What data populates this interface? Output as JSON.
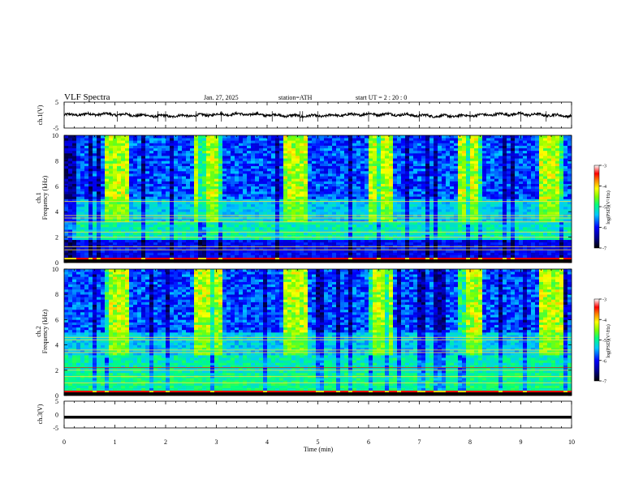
{
  "header": {
    "title": "VLF  Spectra",
    "date": "Jan. 27, 2025",
    "station": "station=ATH",
    "start": "start  UT  =   2  : 20 : 0"
  },
  "chart_data": [
    {
      "type": "line",
      "name": "ch1-waveform",
      "ylabel": "ch.1(V)",
      "ylim": [
        -5,
        5
      ],
      "y_ticks": [
        "5",
        "-5"
      ],
      "baseline_v": 0.0,
      "spike_minutes": [
        1.05,
        1.85,
        2.0,
        2.6,
        3.1,
        4.1,
        4.65,
        4.7,
        5.0,
        6.0,
        7.0,
        8.0,
        9.0,
        9.5
      ]
    },
    {
      "type": "heatmap",
      "name": "ch1-spectrogram",
      "ylabel": "Frequency (kHz)",
      "channel_label": "ch.1",
      "xlim": [
        0,
        10
      ],
      "ylim": [
        0,
        10
      ],
      "y_ticks": [
        "0",
        "2",
        "4",
        "6",
        "8",
        "10"
      ],
      "colorbar": {
        "label": "log(PSD)(V²/Hz)",
        "min": -7,
        "max": -3,
        "ticks": [
          "-3",
          "-4",
          "-5",
          "-6",
          "-7"
        ]
      },
      "bright_periods_min": [
        [
          0.8,
          1.3
        ],
        [
          2.6,
          3.1
        ],
        [
          4.3,
          4.8
        ],
        [
          6.0,
          6.5
        ],
        [
          7.75,
          8.25
        ],
        [
          9.35,
          9.8
        ]
      ],
      "lines_khz": [
        1.0,
        1.25,
        2.0,
        2.4,
        3.2,
        3.5,
        3.7,
        4.8
      ]
    },
    {
      "type": "heatmap",
      "name": "ch2-spectrogram",
      "ylabel": "Frequency (kHz)",
      "channel_label": "ch.2",
      "xlim": [
        0,
        10
      ],
      "ylim": [
        0,
        10
      ],
      "y_ticks": [
        "0",
        "2",
        "4",
        "6",
        "8",
        "10"
      ],
      "colorbar": {
        "label": "log(PSD)(V²/Hz)",
        "min": -7,
        "max": -3,
        "ticks": [
          "-3",
          "-4",
          "-5",
          "-6",
          "-7"
        ]
      },
      "bright_periods_min": [
        [
          0.8,
          1.3
        ],
        [
          2.6,
          3.1
        ],
        [
          4.3,
          4.8
        ],
        [
          6.0,
          6.5
        ],
        [
          7.75,
          8.25
        ],
        [
          9.35,
          9.8
        ]
      ],
      "lines_khz": [
        1.0,
        1.5,
        2.0,
        2.2,
        3.4,
        3.6,
        4.4,
        4.6
      ]
    },
    {
      "type": "line",
      "name": "ch3-waveform",
      "ylabel": "ch.3(V)",
      "ylim": [
        -5,
        5
      ],
      "y_ticks": [
        "5",
        "0",
        "-5"
      ],
      "baseline_v": -1.0
    }
  ],
  "x_axis": {
    "label": "Time  (min)",
    "ticks": [
      "0",
      "1",
      "2",
      "3",
      "4",
      "5",
      "6",
      "7",
      "8",
      "9",
      "10"
    ],
    "xlim": [
      0,
      10
    ]
  }
}
